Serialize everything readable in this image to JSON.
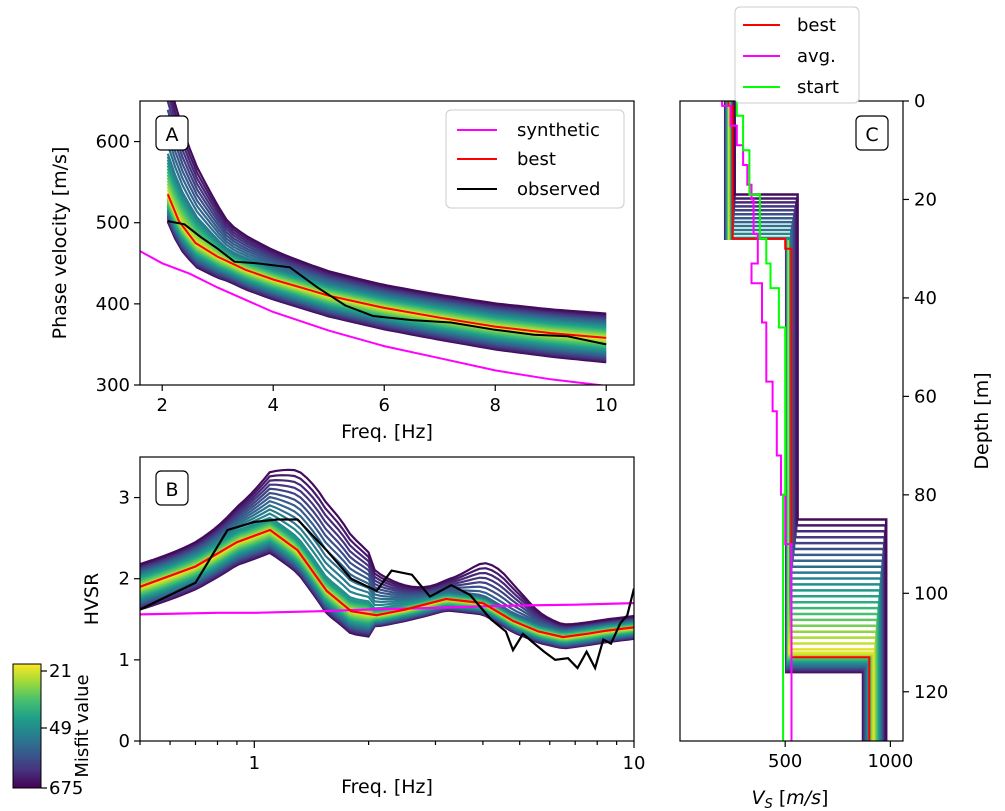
{
  "chart_data": [
    {
      "panel_label": "A",
      "type": "line",
      "ylabel": "Phase velocity [m/s]",
      "xlabel": "Freq. [Hz]",
      "xlim": [
        1.6,
        10.5
      ],
      "ylim": [
        300,
        650
      ],
      "xticks": [
        2,
        4,
        6,
        8,
        10
      ],
      "yticks": [
        300,
        400,
        500,
        600
      ],
      "legend": {
        "placement": "top-right",
        "entries": [
          "synthetic",
          "best",
          "observed"
        ]
      },
      "series": [
        {
          "name": "synthetic",
          "color": "#ff00ff",
          "x": [
            1.6,
            2,
            2.5,
            3,
            4,
            5,
            6,
            7,
            8,
            9,
            10.5
          ],
          "y": [
            465,
            450,
            437,
            420,
            390,
            367,
            348,
            333,
            318,
            307,
            295
          ]
        },
        {
          "name": "best",
          "color": "#ff0000",
          "x": [
            2.1,
            2.3,
            2.6,
            3,
            3.5,
            4,
            4.5,
            5,
            6,
            7,
            8,
            9,
            10
          ],
          "y": [
            535,
            502,
            475,
            458,
            442,
            430,
            420,
            410,
            395,
            383,
            372,
            364,
            358
          ]
        },
        {
          "name": "observed",
          "color": "#000000",
          "x": [
            2.1,
            2.4,
            2.7,
            3,
            3.3,
            3.7,
            4.3,
            4.8,
            5.3,
            5.8,
            6.5,
            7.2,
            8,
            8.7,
            9.3,
            10
          ],
          "y": [
            502,
            498,
            482,
            468,
            452,
            450,
            445,
            420,
            398,
            385,
            380,
            377,
            368,
            362,
            360,
            350
          ]
        }
      ]
    },
    {
      "panel_label": "B",
      "type": "line",
      "ylabel": "HVSR",
      "xlabel": "Freq. [Hz]",
      "xscale": "log",
      "xlim": [
        0.5,
        10
      ],
      "ylim": [
        0,
        3.5
      ],
      "xticks": [
        1,
        10
      ],
      "yticks": [
        0,
        1,
        2,
        3
      ],
      "series": [
        {
          "name": "synthetic",
          "color": "#ff00ff",
          "x": [
            0.5,
            0.8,
            1,
            1.5,
            2,
            3,
            4,
            5,
            7,
            10
          ],
          "y": [
            1.56,
            1.58,
            1.58,
            1.6,
            1.62,
            1.64,
            1.66,
            1.67,
            1.68,
            1.7
          ]
        },
        {
          "name": "best",
          "color": "#ff0000",
          "x": [
            0.5,
            0.7,
            0.9,
            1.1,
            1.3,
            1.55,
            1.8,
            2.1,
            2.5,
            3.2,
            4,
            4.8,
            5.6,
            6.5,
            7.5,
            8.5,
            10
          ],
          "y": [
            1.9,
            2.15,
            2.45,
            2.6,
            2.35,
            1.85,
            1.6,
            1.55,
            1.62,
            1.75,
            1.7,
            1.48,
            1.35,
            1.28,
            1.32,
            1.36,
            1.4
          ]
        },
        {
          "name": "observed",
          "color": "#000000",
          "x": [
            0.5,
            0.7,
            0.85,
            1.0,
            1.15,
            1.3,
            1.55,
            1.8,
            2.1,
            2.3,
            2.6,
            2.9,
            3.3,
            3.7,
            4.2,
            4.6,
            4.8,
            5.1,
            5.4,
            5.8,
            6.2,
            6.7,
            7.1,
            7.5,
            7.9,
            8.3,
            8.7,
            9.2,
            9.6,
            10
          ],
          "y": [
            1.62,
            1.95,
            2.6,
            2.7,
            2.73,
            2.73,
            2.35,
            2.0,
            1.85,
            2.1,
            2.05,
            1.78,
            1.92,
            1.8,
            1.5,
            1.35,
            1.12,
            1.32,
            1.22,
            1.1,
            1.0,
            1.02,
            0.9,
            1.1,
            0.9,
            1.25,
            1.2,
            1.45,
            1.55,
            1.88
          ]
        }
      ]
    },
    {
      "panel_label": "C",
      "type": "line",
      "xlabel": "V_S [m/s]",
      "ylabel": "Depth [m]",
      "xlim": [
        0,
        1060
      ],
      "ylim": [
        130,
        0
      ],
      "xticks": [
        500,
        1000
      ],
      "yticks": [
        0,
        20,
        40,
        60,
        80,
        100,
        120
      ],
      "legend": {
        "placement": "top-left-outside",
        "entries": [
          "best",
          "avg.",
          "start"
        ]
      },
      "series": [
        {
          "name": "best",
          "color": "#ff0000",
          "vs": [
            230,
            230,
            250,
            250,
            500,
            500,
            530,
            530,
            900,
            900
          ],
          "depth": [
            0,
            1,
            1,
            28,
            28,
            30,
            30,
            113,
            113,
            130
          ]
        },
        {
          "name": "avg.",
          "color": "#ff00ff",
          "vs": [
            200,
            200,
            240,
            240,
            270,
            270,
            300,
            300,
            320,
            320,
            340,
            340,
            350,
            350,
            370,
            370,
            340,
            340,
            390,
            390,
            410,
            410,
            440,
            440,
            460,
            460,
            480,
            480,
            500,
            500,
            530,
            530
          ],
          "depth": [
            0,
            1,
            1,
            5,
            5,
            9,
            9,
            13,
            13,
            17,
            17,
            20,
            20,
            27,
            27,
            33,
            33,
            37,
            37,
            45,
            45,
            57,
            57,
            63,
            63,
            72,
            72,
            80,
            80,
            90,
            90,
            130
          ]
        },
        {
          "name": "start",
          "color": "#00ff00",
          "vs": [
            270,
            270,
            300,
            300,
            330,
            330,
            380,
            380,
            410,
            410,
            430,
            430,
            470,
            470,
            500,
            500,
            490,
            490
          ],
          "depth": [
            0,
            3,
            3,
            10,
            10,
            19,
            19,
            28,
            28,
            33,
            33,
            38,
            38,
            46,
            46,
            80,
            80,
            130
          ]
        }
      ]
    }
  ],
  "colorbar": {
    "label": "Misfit value",
    "ticks": [
      "21",
      "49",
      "675"
    ],
    "colors": [
      "#fde725",
      "#a0da39",
      "#4ac16d",
      "#1fa187",
      "#277f8e",
      "#365c8d",
      "#46327e",
      "#440154"
    ]
  }
}
